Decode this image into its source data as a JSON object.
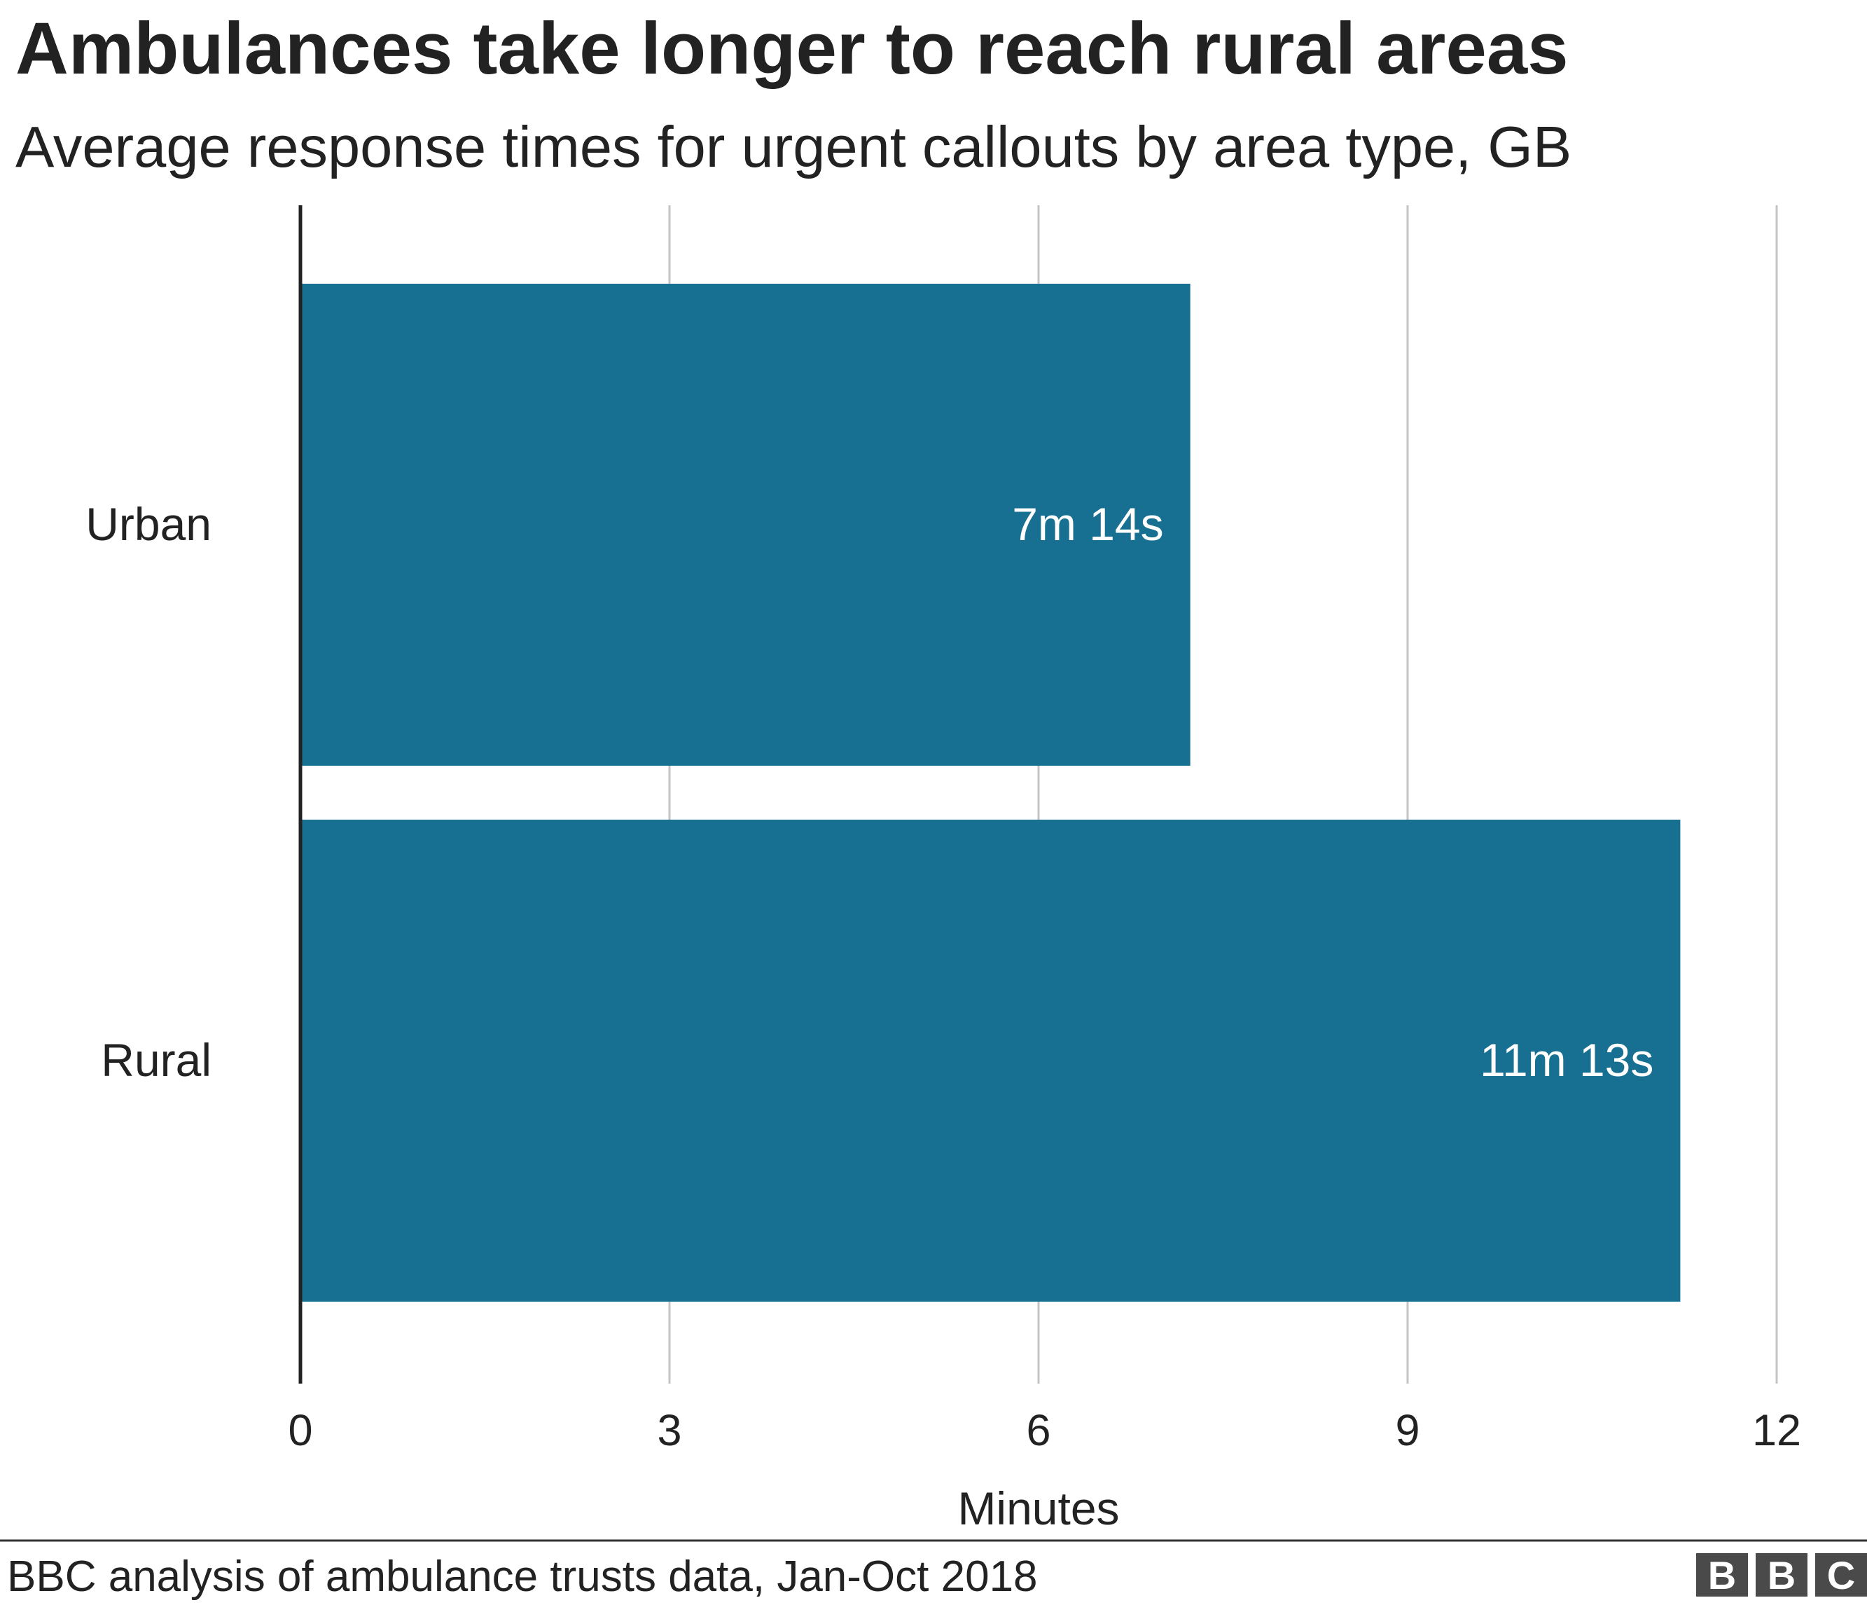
{
  "chart_data": {
    "type": "bar",
    "orientation": "horizontal",
    "title": "Ambulances take longer to reach rural areas",
    "subtitle": "Average response times for urgent callouts by area type, GB",
    "categories": [
      "Urban",
      "Rural"
    ],
    "values": [
      7.2333,
      11.2167
    ],
    "data_labels": [
      "7m 14s",
      "11m 13s"
    ],
    "xlabel": "Minutes",
    "ylabel": "",
    "xlim": [
      0,
      12
    ],
    "xticks": [
      0,
      3,
      6,
      9,
      12
    ],
    "xtick_labels": [
      "0",
      "3",
      "6",
      "9",
      "12"
    ],
    "grid": true,
    "legend": "none",
    "bar_color": "#176f91",
    "source": "BBC analysis of ambulance trusts data, Jan-Oct 2018"
  },
  "branding": {
    "logo_letters": [
      "B",
      "B",
      "C"
    ],
    "logo_color": "#4a4a4a"
  }
}
